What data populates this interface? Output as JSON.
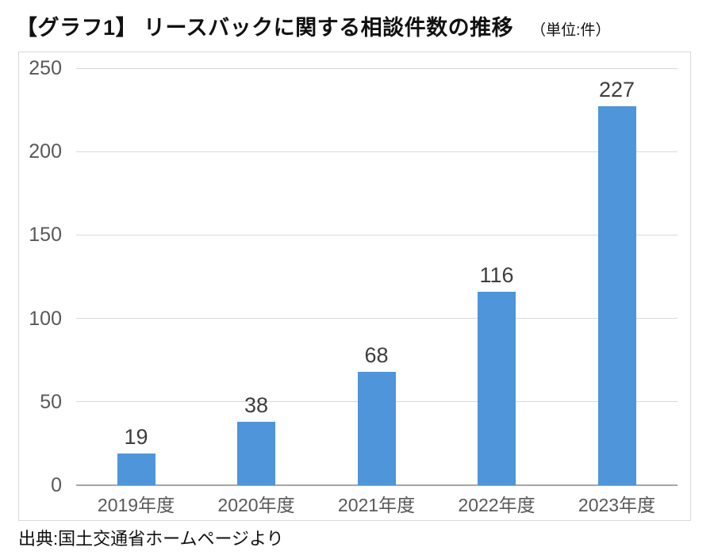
{
  "page": {
    "title": "【グラフ1】 リースバックに関する相談件数の推移",
    "unit_label": "（単位:件）",
    "source": "出典:国土交通省ホームページより"
  },
  "chart_data": {
    "type": "bar",
    "title": "リースバックに関する相談件数の推移",
    "unit": "件",
    "categories": [
      "2019年度",
      "2020年度",
      "2021年度",
      "2022年度",
      "2023年度"
    ],
    "values": [
      19,
      38,
      68,
      116,
      227
    ],
    "data_labels": [
      "19",
      "38",
      "68",
      "116",
      "227"
    ],
    "xlabel": "",
    "ylabel": "",
    "ylim": [
      0,
      250
    ],
    "yticks": [
      0,
      50,
      100,
      150,
      200,
      250
    ],
    "grid": true,
    "legend": "none",
    "colors": {
      "bar": "#4E95D9",
      "gridline": "#d9d9d9",
      "axis_line": "#a6a6a6",
      "tick_label": "#595959",
      "value_label": "#3d3d3d",
      "plot_border": "#d9d9d9"
    }
  }
}
